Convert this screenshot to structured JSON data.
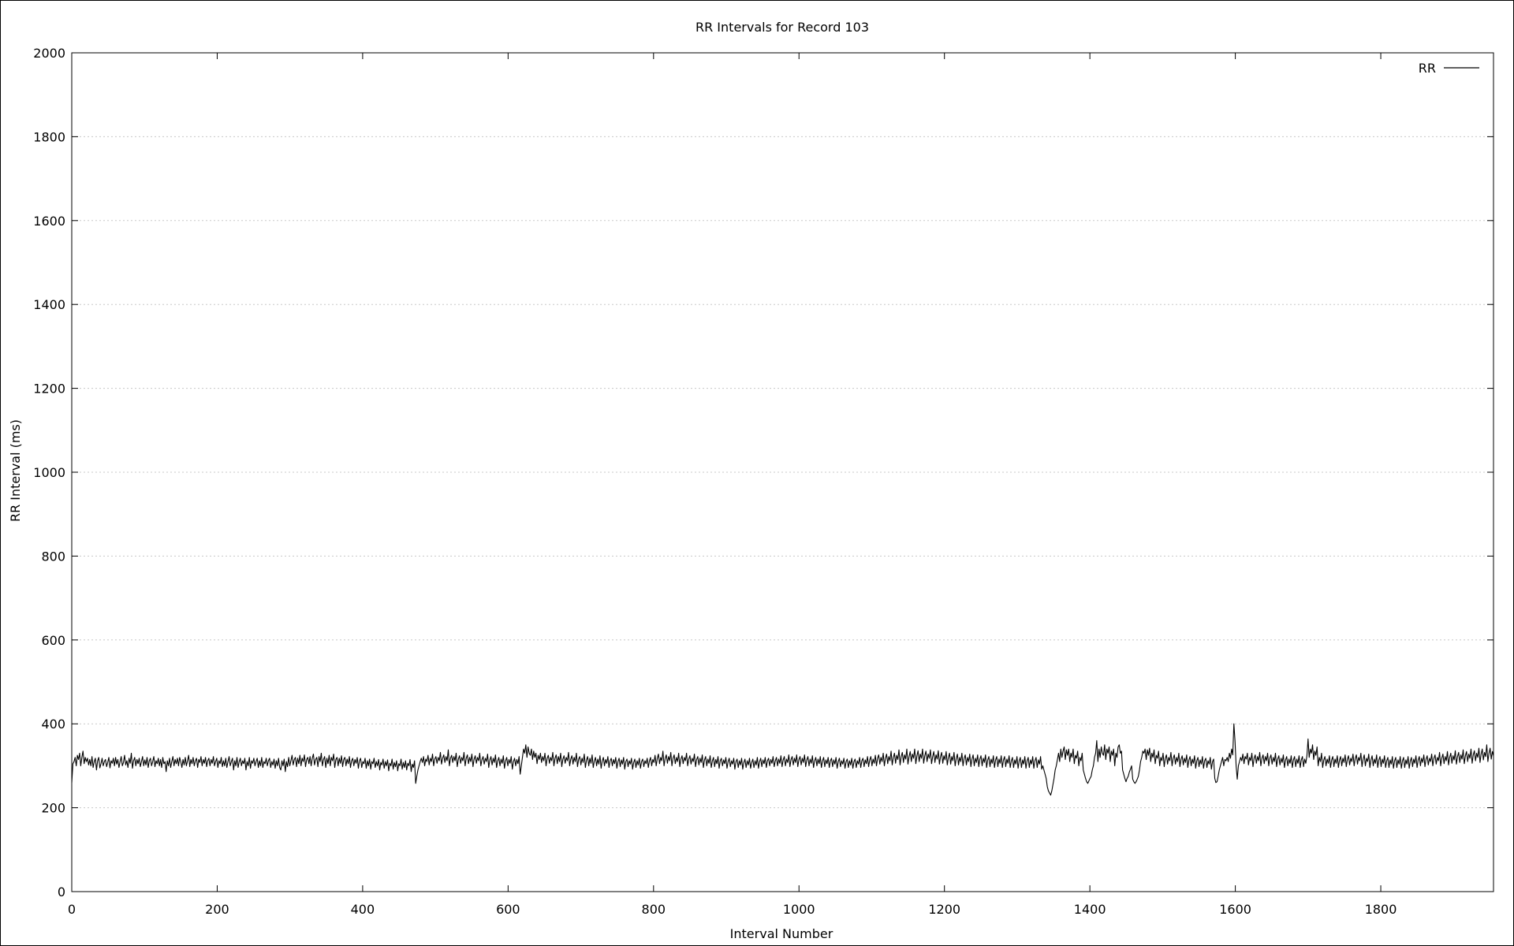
{
  "chart_data": {
    "type": "line",
    "title": "RR Intervals for Record 103",
    "xlabel": "Interval Number",
    "ylabel": "RR Interval (ms)",
    "xlim": [
      0,
      1955
    ],
    "ylim": [
      0,
      2000
    ],
    "x_ticks": [
      0,
      200,
      400,
      600,
      800,
      1000,
      1200,
      1400,
      1600,
      1800
    ],
    "y_ticks": [
      0,
      200,
      400,
      600,
      800,
      1000,
      1200,
      1400,
      1600,
      1800,
      2000
    ],
    "grid": true,
    "legend": {
      "position": "top-right"
    },
    "series": [
      {
        "name": "RR",
        "color": "#000000",
        "x_start": 0,
        "x_step": 1,
        "values": [
          260,
          305,
          310,
          320,
          300,
          325,
          315,
          330,
          300,
          320,
          335,
          305,
          320,
          310,
          318,
          302,
          315,
          300,
          322,
          296,
          310,
          318,
          290,
          312,
          320,
          295,
          305,
          318,
          300,
          310,
          315,
          298,
          308,
          320,
          295,
          312,
          306,
          318,
          300,
          320,
          304,
          315,
          296,
          310,
          322,
          300,
          308,
          325,
          302,
          312,
          296,
          318,
          306,
          330,
          294,
          312,
          320,
          300,
          315,
          305,
          318,
          298,
          310,
          322,
          300,
          314,
          302,
          320,
          296,
          312,
          318,
          300,
          310,
          322,
          298,
          312,
          305,
          318,
          300,
          315,
          296,
          320,
          305,
          310,
          286,
          312,
          300,
          318,
          296,
          310,
          322,
          300,
          315,
          305,
          318,
          300,
          320,
          310,
          296,
          315,
          302,
          320,
          300,
          312,
          325,
          298,
          315,
          305,
          320,
          300,
          312,
          318,
          296,
          315,
          308,
          322,
          300,
          315,
          306,
          320,
          298,
          312,
          318,
          300,
          315,
          306,
          322,
          300,
          310,
          318,
          296,
          312,
          305,
          320,
          298,
          312,
          300,
          318,
          296,
          310,
          322,
          300,
          310,
          318,
          290,
          312,
          300,
          320,
          296,
          310,
          318,
          300,
          312,
          305,
          318,
          290,
          310,
          300,
          320,
          294,
          312,
          306,
          318,
          300,
          310,
          318,
          296,
          312,
          300,
          320,
          296,
          310,
          305,
          318,
          300,
          312,
          318,
          296,
          310,
          302,
          316,
          294,
          312,
          300,
          318,
          296,
          290,
          312,
          300,
          316,
          286,
          310,
          298,
          320,
          300,
          312,
          325,
          302,
          315,
          320,
          298,
          318,
          305,
          325,
          300,
          318,
          310,
          326,
          298,
          315,
          320,
          305,
          322,
          300,
          318,
          328,
          302,
          315,
          320,
          298,
          322,
          310,
          330,
          300,
          315,
          322,
          296,
          318,
          305,
          325,
          300,
          320,
          312,
          328,
          296,
          315,
          320,
          300,
          318,
          306,
          324,
          298,
          315,
          320,
          300,
          316,
          305,
          322,
          296,
          312,
          318,
          300,
          315,
          306,
          320,
          294,
          312,
          318,
          296,
          310,
          305,
          318,
          294,
          312,
          300,
          316,
          292,
          310,
          305,
          318,
          296,
          310,
          300,
          315,
          290,
          308,
          302,
          316,
          294,
          310,
          300,
          314,
          288,
          306,
          300,
          316,
          292,
          308,
          298,
          312,
          288,
          305,
          300,
          316,
          292,
          308,
          296,
          312,
          290,
          306,
          300,
          315,
          286,
          304,
          296,
          312,
          258,
          275,
          290,
          300,
          310,
          318,
          308,
          322,
          300,
          316,
          310,
          325,
          302,
          318,
          310,
          328,
          300,
          316,
          322,
          306,
          320,
          312,
          332,
          304,
          318,
          326,
          308,
          322,
          312,
          338,
          300,
          318,
          325,
          308,
          322,
          312,
          330,
          298,
          316,
          324,
          306,
          320,
          312,
          332,
          300,
          318,
          326,
          305,
          320,
          310,
          328,
          298,
          316,
          324,
          306,
          320,
          312,
          330,
          300,
          315,
          322,
          304,
          318,
          310,
          328,
          296,
          314,
          322,
          302,
          318,
          308,
          326,
          296,
          312,
          320,
          300,
          316,
          306,
          324,
          294,
          312,
          320,
          300,
          315,
          306,
          322,
          292,
          310,
          318,
          300,
          315,
          305,
          322,
          280,
          300,
          320,
          340,
          330,
          350,
          320,
          345,
          330,
          325,
          340,
          315,
          335,
          320,
          330,
          305,
          325,
          315,
          330,
          308,
          322,
          312,
          330,
          300,
          318,
          325,
          306,
          320,
          312,
          332,
          300,
          318,
          326,
          305,
          322,
          310,
          330,
          298,
          316,
          324,
          306,
          320,
          312,
          332,
          300,
          316,
          324,
          304,
          320,
          310,
          330,
          298,
          316,
          322,
          302,
          318,
          308,
          328,
          296,
          314,
          322,
          300,
          318,
          306,
          326,
          296,
          312,
          320,
          300,
          316,
          304,
          324,
          294,
          312,
          320,
          300,
          315,
          306,
          322,
          296,
          312,
          318,
          300,
          315,
          305,
          320,
          294,
          310,
          318,
          298,
          314,
          304,
          320,
          292,
          310,
          316,
          298,
          312,
          304,
          318,
          292,
          308,
          316,
          296,
          312,
          302,
          318,
          294,
          310,
          316,
          298,
          312,
          305,
          318,
          296,
          312,
          320,
          300,
          315,
          308,
          325,
          300,
          318,
          328,
          305,
          320,
          312,
          335,
          300,
          318,
          326,
          306,
          322,
          312,
          332,
          300,
          318,
          326,
          305,
          320,
          310,
          330,
          298,
          316,
          324,
          305,
          320,
          312,
          330,
          300,
          316,
          324,
          304,
          318,
          310,
          328,
          298,
          315,
          322,
          302,
          318,
          308,
          326,
          296,
          314,
          322,
          300,
          316,
          306,
          324,
          296,
          312,
          320,
          298,
          315,
          305,
          322,
          294,
          312,
          318,
          300,
          314,
          305,
          320,
          294,
          310,
          318,
          298,
          312,
          304,
          318,
          292,
          310,
          316,
          296,
          312,
          302,
          318,
          292,
          308,
          316,
          296,
          312,
          302,
          318,
          294,
          308,
          316,
          296,
          312,
          302,
          320,
          294,
          310,
          318,
          298,
          314,
          305,
          320,
          296,
          312,
          318,
          300,
          315,
          306,
          322,
          298,
          312,
          320,
          300,
          316,
          306,
          324,
          298,
          314,
          322,
          300,
          316,
          308,
          326,
          298,
          315,
          322,
          302,
          318,
          308,
          326,
          298,
          315,
          322,
          302,
          318,
          308,
          326,
          298,
          314,
          322,
          300,
          316,
          306,
          324,
          296,
          312,
          320,
          300,
          316,
          305,
          322,
          296,
          312,
          320,
          298,
          314,
          305,
          320,
          296,
          312,
          318,
          298,
          314,
          304,
          320,
          294,
          310,
          318,
          298,
          312,
          304,
          318,
          294,
          310,
          316,
          296,
          312,
          302,
          318,
          294,
          310,
          316,
          296,
          312,
          304,
          320,
          296,
          312,
          318,
          298,
          314,
          305,
          322,
          298,
          314,
          322,
          300,
          316,
          306,
          325,
          300,
          318,
          326,
          304,
          320,
          310,
          330,
          300,
          318,
          328,
          305,
          322,
          312,
          335,
          302,
          320,
          330,
          306,
          325,
          315,
          338,
          302,
          322,
          332,
          308,
          326,
          316,
          340,
          304,
          322,
          334,
          310,
          328,
          318,
          340,
          305,
          324,
          336,
          310,
          328,
          318,
          340,
          306,
          324,
          335,
          310,
          328,
          318,
          338,
          305,
          322,
          334,
          308,
          326,
          316,
          336,
          304,
          322,
          332,
          306,
          324,
          314,
          334,
          302,
          320,
          330,
          304,
          322,
          312,
          332,
          300,
          318,
          328,
          302,
          320,
          310,
          330,
          300,
          318,
          326,
          302,
          320,
          310,
          328,
          298,
          316,
          326,
          300,
          318,
          308,
          326,
          298,
          316,
          324,
          300,
          318,
          308,
          326,
          296,
          314,
          322,
          298,
          316,
          306,
          324,
          296,
          314,
          322,
          298,
          316,
          306,
          324,
          296,
          314,
          322,
          298,
          316,
          306,
          324,
          296,
          312,
          320,
          296,
          314,
          304,
          322,
          294,
          312,
          320,
          296,
          314,
          304,
          322,
          294,
          312,
          320,
          296,
          314,
          304,
          322,
          294,
          312,
          320,
          296,
          314,
          304,
          322,
          292,
          300,
          290,
          280,
          270,
          250,
          240,
          235,
          230,
          240,
          255,
          270,
          290,
          300,
          315,
          330,
          310,
          340,
          320,
          335,
          345,
          315,
          338,
          325,
          340,
          310,
          330,
          320,
          340,
          305,
          325,
          318,
          335,
          300,
          320,
          312,
          330,
          290,
          280,
          270,
          262,
          258,
          264,
          270,
          275,
          290,
          300,
          320,
          330,
          360,
          310,
          340,
          320,
          345,
          330,
          325,
          350,
          315,
          340,
          330,
          345,
          310,
          335,
          325,
          340,
          300,
          330,
          320,
          345,
          350,
          330,
          335,
          290,
          280,
          270,
          262,
          270,
          275,
          285,
          292,
          300,
          268,
          262,
          258,
          262,
          268,
          275,
          290,
          310,
          320,
          335,
          330,
          340,
          315,
          338,
          325,
          342,
          310,
          330,
          320,
          338,
          305,
          325,
          318,
          335,
          300,
          320,
          312,
          330,
          298,
          318,
          326,
          304,
          320,
          312,
          332,
          300,
          318,
          326,
          304,
          320,
          310,
          330,
          298,
          316,
          324,
          302,
          318,
          308,
          326,
          296,
          314,
          322,
          300,
          316,
          306,
          324,
          294,
          312,
          320,
          298,
          314,
          304,
          322,
          294,
          312,
          318,
          296,
          312,
          304,
          320,
          292,
          310,
          316,
          270,
          260,
          262,
          275,
          290,
          300,
          310,
          320,
          300,
          315,
          312,
          320,
          310,
          330,
          318,
          340,
          326,
          400,
          360,
          300,
          268,
          300,
          310,
          320,
          312,
          328,
          305,
          322,
          316,
          330,
          302,
          320,
          312,
          330,
          298,
          318,
          326,
          306,
          322,
          312,
          332,
          300,
          318,
          326,
          305,
          322,
          312,
          330,
          300,
          318,
          326,
          304,
          320,
          310,
          330,
          298,
          316,
          324,
          302,
          318,
          308,
          326,
          296,
          314,
          322,
          300,
          316,
          306,
          324,
          296,
          314,
          322,
          298,
          316,
          306,
          324,
          296,
          314,
          322,
          298,
          316,
          306,
          324,
          364,
          320,
          340,
          330,
          350,
          315,
          335,
          325,
          345,
          300,
          320,
          310,
          330,
          296,
          314,
          322,
          300,
          316,
          306,
          324,
          296,
          314,
          322,
          298,
          316,
          306,
          324,
          296,
          314,
          322,
          300,
          318,
          308,
          326,
          298,
          316,
          324,
          302,
          318,
          310,
          328,
          300,
          318,
          326,
          304,
          320,
          312,
          330,
          298,
          316,
          326,
          300,
          318,
          310,
          328,
          296,
          314,
          324,
          300,
          316,
          306,
          326,
          296,
          314,
          322,
          298,
          316,
          306,
          324,
          296,
          312,
          320,
          296,
          314,
          304,
          322,
          294,
          312,
          320,
          296,
          314,
          304,
          322,
          294,
          312,
          320,
          296,
          314,
          304,
          322,
          294,
          312,
          320,
          298,
          316,
          306,
          324,
          296,
          314,
          322,
          300,
          318,
          308,
          326,
          298,
          316,
          324,
          302,
          318,
          310,
          328,
          300,
          318,
          326,
          304,
          320,
          312,
          332,
          300,
          318,
          328,
          305,
          322,
          312,
          334,
          302,
          320,
          330,
          306,
          324,
          314,
          336,
          304,
          322,
          332,
          308,
          326,
          316,
          338,
          305,
          324,
          334,
          310,
          328,
          318,
          340,
          306,
          326,
          336,
          312,
          330,
          320,
          342,
          308,
          328,
          340,
          314,
          332,
          322,
          350,
          310,
          330,
          342,
          316,
          334,
          324
        ]
      }
    ]
  }
}
